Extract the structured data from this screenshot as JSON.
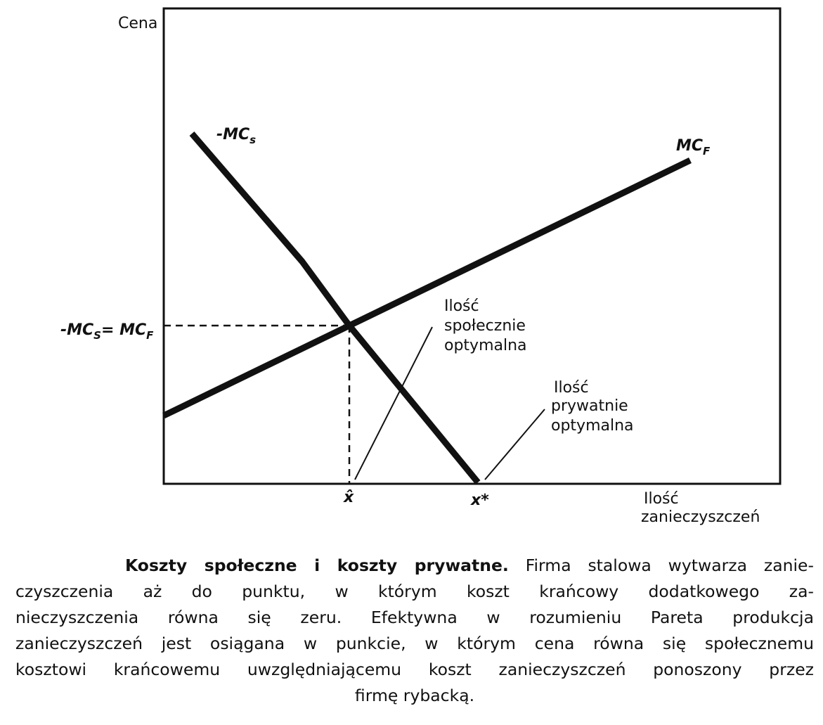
{
  "diagram": {
    "y_axis_label": "Cena",
    "x_axis_label": {
      "line1": "Ilość",
      "line2": "zanieczyszczeń"
    },
    "curves": {
      "social": {
        "main": "-MC",
        "sub": "s"
      },
      "private": {
        "main": "MC",
        "sub": "F"
      }
    },
    "equality_label": {
      "left_main": "-MC",
      "left_sub": "S",
      "mid": "= MC",
      "right_sub": "F"
    },
    "x_points": {
      "social_optimum": "x̂",
      "private_optimum": "x*"
    },
    "annotations": {
      "social": {
        "line1": "Ilość",
        "line2": "społecznie",
        "line3": "optymalna"
      },
      "private": {
        "line1": "Ilość",
        "line2": "prywatnie",
        "line3": "optymalna"
      }
    }
  },
  "caption": {
    "bold": "Koszty społeczne i koszty prywatne.",
    "lines": [
      " Firma stalowa wytwarza zanie-",
      "czyszczenia aż do punktu, w którym koszt krańcowy dodatkowego za-",
      "nieczyszczenia równa się zeru. Efektywna w rozumieniu Pareta produkcja",
      "zanieczyszczeń jest osiągana w punkcie, w którym cena równa się społecznemu",
      "kosztowi krańcowemu uwzględniającemu koszt zanieczyszczeń ponoszony przez",
      "firmę rybacką."
    ]
  }
}
